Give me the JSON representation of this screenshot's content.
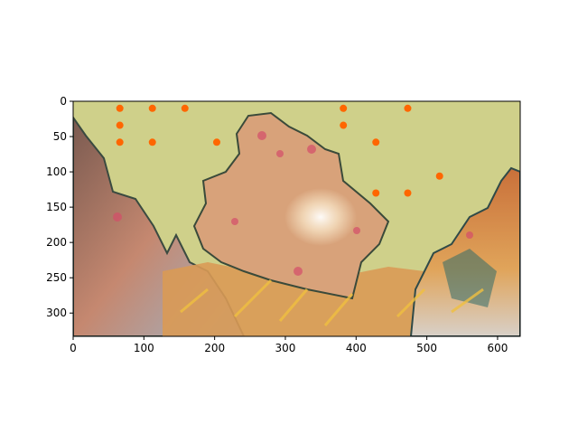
{
  "chart_data": {
    "type": "scatter",
    "title": "",
    "xlabel": "",
    "ylabel": "",
    "background": "photographic image of soft coral (coral crab) with a pale yellow-green tinted backdrop",
    "xlim": [
      0,
      632
    ],
    "ylim": [
      333,
      0
    ],
    "y_inverted": true,
    "grid": false,
    "legend": "none",
    "xticks": [
      0,
      100,
      200,
      300,
      400,
      500,
      600
    ],
    "yticks": [
      0,
      50,
      100,
      150,
      200,
      250,
      300
    ],
    "series": [
      {
        "marker_color": "#ff6600",
        "points": [
          {
            "x": 66,
            "y": 10
          },
          {
            "x": 112,
            "y": 10
          },
          {
            "x": 158,
            "y": 10
          },
          {
            "x": 382,
            "y": 10
          },
          {
            "x": 473,
            "y": 10
          },
          {
            "x": 66,
            "y": 34
          },
          {
            "x": 382,
            "y": 34
          },
          {
            "x": 66,
            "y": 58
          },
          {
            "x": 112,
            "y": 58
          },
          {
            "x": 203,
            "y": 58
          },
          {
            "x": 428,
            "y": 58
          },
          {
            "x": 518,
            "y": 106
          },
          {
            "x": 428,
            "y": 130
          },
          {
            "x": 473,
            "y": 130
          }
        ]
      }
    ]
  }
}
